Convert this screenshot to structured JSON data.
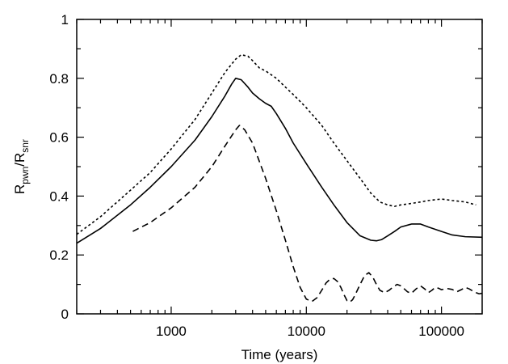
{
  "chart_data": {
    "type": "line",
    "title": "",
    "xlabel": "Time (years)",
    "ylabel": {
      "main": "R",
      "sub1": "pwn",
      "slash": "/R",
      "sub2": "snr"
    },
    "xscale": "log",
    "xlim": [
      200,
      200000
    ],
    "ylim": [
      0,
      1
    ],
    "xticks": [
      {
        "value": 1000,
        "label": "1000"
      },
      {
        "value": 10000,
        "label": "10000"
      },
      {
        "value": 100000,
        "label": "100000"
      }
    ],
    "yticks": [
      {
        "value": 0,
        "label": "0"
      },
      {
        "value": 0.2,
        "label": "0.2"
      },
      {
        "value": 0.4,
        "label": "0.4"
      },
      {
        "value": 0.6,
        "label": "0.6"
      },
      {
        "value": 0.8,
        "label": "0.8"
      },
      {
        "value": 1,
        "label": "1"
      }
    ],
    "grid": false,
    "legend": "none",
    "series": [
      {
        "style": "dotted",
        "color": "#000000",
        "x": [
          200,
          300,
          500,
          700,
          1000,
          1500,
          2000,
          2500,
          3000,
          3300,
          3700,
          4000,
          4500,
          5000,
          6000,
          7000,
          8000,
          10000,
          13000,
          16000,
          20000,
          25000,
          30000,
          35000,
          40000,
          45000,
          50000,
          60000,
          70000,
          80000,
          100000,
          120000,
          150000,
          180000
        ],
        "y": [
          0.27,
          0.33,
          0.42,
          0.48,
          0.56,
          0.66,
          0.75,
          0.82,
          0.865,
          0.88,
          0.875,
          0.86,
          0.835,
          0.825,
          0.8,
          0.77,
          0.745,
          0.7,
          0.64,
          0.58,
          0.52,
          0.46,
          0.41,
          0.38,
          0.37,
          0.365,
          0.37,
          0.375,
          0.38,
          0.385,
          0.39,
          0.385,
          0.38,
          0.37
        ]
      },
      {
        "style": "solid",
        "color": "#000000",
        "x": [
          200,
          300,
          500,
          700,
          1000,
          1500,
          2000,
          2500,
          2800,
          3000,
          3300,
          3700,
          4000,
          4500,
          5000,
          5500,
          6000,
          7000,
          8000,
          10000,
          13000,
          16000,
          20000,
          25000,
          30000,
          33000,
          36000,
          40000,
          45000,
          50000,
          60000,
          70000,
          80000,
          100000,
          120000,
          150000,
          200000
        ],
        "y": [
          0.24,
          0.29,
          0.37,
          0.43,
          0.5,
          0.59,
          0.67,
          0.74,
          0.78,
          0.8,
          0.795,
          0.77,
          0.75,
          0.73,
          0.715,
          0.705,
          0.68,
          0.63,
          0.58,
          0.51,
          0.43,
          0.37,
          0.31,
          0.265,
          0.25,
          0.248,
          0.252,
          0.265,
          0.28,
          0.295,
          0.305,
          0.305,
          0.295,
          0.28,
          0.268,
          0.262,
          0.26
        ]
      },
      {
        "style": "dashed",
        "color": "#000000",
        "x": [
          520,
          700,
          1000,
          1500,
          2000,
          2500,
          3000,
          3200,
          3500,
          4000,
          5000,
          6000,
          7000,
          8000,
          9000,
          10000,
          11000,
          12000,
          13000,
          14000,
          15000,
          16000,
          17000,
          18000,
          19000,
          20000,
          21000,
          22000,
          23000,
          25000,
          27000,
          29000,
          31000,
          33000,
          35000,
          38000,
          41000,
          44000,
          47000,
          50000,
          53000,
          56000,
          60000,
          65000,
          70000,
          75000,
          80000,
          85000,
          90000,
          95000,
          100000,
          110000,
          120000,
          130000,
          140000,
          150000,
          160000,
          170000,
          180000,
          190000,
          200000
        ],
        "y": [
          0.28,
          0.31,
          0.36,
          0.43,
          0.5,
          0.57,
          0.625,
          0.64,
          0.625,
          0.58,
          0.46,
          0.35,
          0.25,
          0.16,
          0.09,
          0.05,
          0.042,
          0.055,
          0.08,
          0.105,
          0.118,
          0.12,
          0.11,
          0.09,
          0.065,
          0.045,
          0.04,
          0.048,
          0.065,
          0.1,
          0.13,
          0.14,
          0.125,
          0.1,
          0.08,
          0.072,
          0.08,
          0.092,
          0.1,
          0.095,
          0.085,
          0.075,
          0.07,
          0.085,
          0.095,
          0.085,
          0.072,
          0.08,
          0.09,
          0.087,
          0.082,
          0.086,
          0.083,
          0.075,
          0.082,
          0.09,
          0.085,
          0.078,
          0.072,
          0.068,
          0.07
        ]
      }
    ]
  }
}
